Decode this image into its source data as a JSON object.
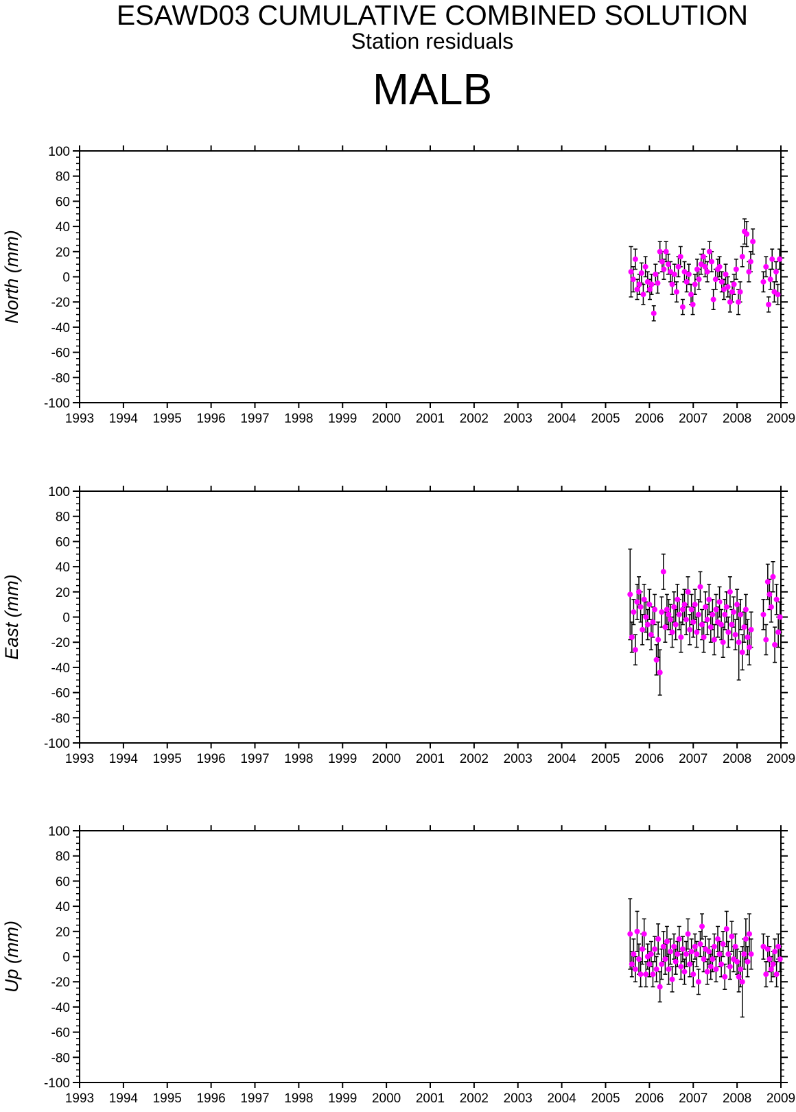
{
  "header": {
    "title": "ESAWD03 CUMULATIVE COMBINED SOLUTION",
    "subtitle": "Station residuals",
    "station": "MALB"
  },
  "colors": {
    "point": "#ff00ff",
    "errorbar": "#000000",
    "axis": "#000000",
    "background": "#ffffff"
  },
  "chart_data": [
    {
      "type": "scatter",
      "ylabel": "North (mm)",
      "xlim": [
        1993,
        2009
      ],
      "ylim": [
        -100,
        100
      ],
      "x_ticks": [
        "1993",
        "1994",
        "1995",
        "1996",
        "1997",
        "1998",
        "1999",
        "2000",
        "2001",
        "2002",
        "2003",
        "2004",
        "2005",
        "2006",
        "2007",
        "2008",
        "2009"
      ],
      "y_ticks": [
        "100",
        "80",
        "60",
        "40",
        "20",
        "0",
        "-20",
        "-40",
        "-60",
        "-80",
        "-100"
      ],
      "series": [
        {
          "x": [
            2005.58,
            2005.63,
            2005.68,
            2005.72,
            2005.77,
            2005.82,
            2005.86,
            2005.91,
            2005.96,
            2006.01,
            2006.05,
            2006.1,
            2006.14,
            2006.19,
            2006.24,
            2006.29,
            2006.33,
            2006.38,
            2006.43,
            2006.48,
            2006.52,
            2006.57,
            2006.62,
            2006.66,
            2006.71,
            2006.76,
            2006.8,
            2006.85,
            2006.9,
            2006.95,
            2006.99,
            2007.04,
            2007.09,
            2007.13,
            2007.18,
            2007.23,
            2007.27,
            2007.32,
            2007.37,
            2007.42,
            2007.46,
            2007.51,
            2007.56,
            2007.6,
            2007.65,
            2007.7,
            2007.74,
            2007.79,
            2007.84,
            2007.89,
            2007.93,
            2007.98,
            2008.03,
            2008.07,
            2008.12,
            2008.17,
            2008.22,
            2008.27,
            2008.31,
            2008.36,
            2008.6,
            2008.66,
            2008.72,
            2008.76,
            2008.8,
            2008.85,
            2008.89,
            2008.93,
            2008.97
          ],
          "y": [
            4,
            -2,
            14,
            -10,
            -6,
            3,
            -14,
            8,
            -4,
            -10,
            -6,
            -29,
            2,
            -5,
            20,
            12,
            6,
            20,
            10,
            4,
            -6,
            2,
            -12,
            8,
            16,
            -24,
            4,
            -4,
            2,
            -14,
            -22,
            -6,
            6,
            -2,
            10,
            16,
            8,
            4,
            20,
            12,
            -18,
            -2,
            6,
            8,
            -4,
            -10,
            2,
            -8,
            -20,
            -12,
            -6,
            6,
            -20,
            -12,
            16,
            36,
            34,
            4,
            12,
            28,
            -4,
            8,
            -22,
            -2,
            14,
            -12,
            4,
            -14,
            14
          ],
          "err": [
            20,
            10,
            8,
            8,
            8,
            8,
            8,
            8,
            8,
            8,
            8,
            6,
            8,
            8,
            8,
            8,
            8,
            8,
            8,
            8,
            8,
            8,
            8,
            8,
            8,
            6,
            8,
            8,
            8,
            8,
            8,
            8,
            8,
            8,
            8,
            6,
            8,
            8,
            8,
            8,
            8,
            8,
            8,
            8,
            8,
            8,
            8,
            8,
            8,
            8,
            8,
            8,
            10,
            8,
            8,
            10,
            10,
            8,
            8,
            10,
            8,
            8,
            6,
            8,
            8,
            8,
            8,
            8,
            8
          ]
        }
      ]
    },
    {
      "type": "scatter",
      "ylabel": "East (mm)",
      "xlim": [
        1993,
        2009
      ],
      "ylim": [
        -100,
        100
      ],
      "x_ticks": [
        "1993",
        "1994",
        "1995",
        "1996",
        "1997",
        "1998",
        "1999",
        "2000",
        "2001",
        "2002",
        "2003",
        "2004",
        "2005",
        "2006",
        "2007",
        "2008",
        "2009"
      ],
      "y_ticks": [
        "100",
        "80",
        "60",
        "40",
        "20",
        "0",
        "-20",
        "-40",
        "-60",
        "-80",
        "-100"
      ],
      "series": [
        {
          "x": [
            2005.56,
            2005.6,
            2005.64,
            2005.68,
            2005.72,
            2005.76,
            2005.8,
            2005.84,
            2005.88,
            2005.92,
            2005.96,
            2006.0,
            2006.04,
            2006.08,
            2006.12,
            2006.16,
            2006.2,
            2006.24,
            2006.28,
            2006.32,
            2006.36,
            2006.4,
            2006.44,
            2006.48,
            2006.52,
            2006.56,
            2006.6,
            2006.64,
            2006.68,
            2006.72,
            2006.76,
            2006.8,
            2006.84,
            2006.88,
            2006.92,
            2006.96,
            2007.0,
            2007.04,
            2007.08,
            2007.12,
            2007.16,
            2007.2,
            2007.24,
            2007.28,
            2007.32,
            2007.36,
            2007.4,
            2007.44,
            2007.48,
            2007.52,
            2007.56,
            2007.6,
            2007.64,
            2007.68,
            2007.72,
            2007.76,
            2007.8,
            2007.84,
            2007.88,
            2007.92,
            2007.96,
            2008.0,
            2008.04,
            2008.08,
            2008.12,
            2008.16,
            2008.2,
            2008.24,
            2008.28,
            2008.32,
            2008.6,
            2008.66,
            2008.7,
            2008.74,
            2008.78,
            2008.82,
            2008.86,
            2008.9,
            2008.94,
            2008.98
          ],
          "y": [
            18,
            -16,
            4,
            -26,
            12,
            20,
            8,
            -10,
            14,
            0,
            -6,
            10,
            -14,
            -4,
            6,
            -34,
            -18,
            -44,
            4,
            36,
            -8,
            6,
            2,
            -2,
            -12,
            8,
            -6,
            14,
            2,
            -16,
            6,
            10,
            -2,
            20,
            -10,
            6,
            -4,
            10,
            -12,
            2,
            24,
            -6,
            -16,
            8,
            -2,
            14,
            -8,
            2,
            -18,
            6,
            -4,
            12,
            -6,
            -20,
            2,
            8,
            -12,
            20,
            -6,
            4,
            -14,
            10,
            -20,
            2,
            -28,
            -8,
            6,
            -16,
            -24,
            -10,
            2,
            -18,
            28,
            18,
            8,
            32,
            -22,
            14,
            -12,
            0
          ],
          "err": [
            36,
            12,
            10,
            12,
            14,
            12,
            12,
            12,
            12,
            12,
            12,
            12,
            12,
            12,
            12,
            12,
            14,
            18,
            12,
            14,
            12,
            12,
            12,
            12,
            12,
            12,
            12,
            12,
            12,
            12,
            12,
            12,
            12,
            12,
            12,
            12,
            12,
            12,
            12,
            12,
            12,
            12,
            12,
            12,
            12,
            12,
            12,
            12,
            12,
            12,
            12,
            12,
            12,
            12,
            12,
            12,
            12,
            12,
            12,
            12,
            12,
            12,
            30,
            12,
            14,
            12,
            12,
            14,
            14,
            14,
            12,
            12,
            14,
            12,
            12,
            12,
            14,
            12,
            12,
            12
          ]
        }
      ]
    },
    {
      "type": "scatter",
      "ylabel": "Up (mm)",
      "xlim": [
        1993,
        2009
      ],
      "ylim": [
        -100,
        100
      ],
      "x_ticks": [
        "1993",
        "1994",
        "1995",
        "1996",
        "1997",
        "1998",
        "1999",
        "2000",
        "2001",
        "2002",
        "2003",
        "2004",
        "2005",
        "2006",
        "2007",
        "2008",
        "2009"
      ],
      "y_ticks": [
        "100",
        "80",
        "60",
        "40",
        "20",
        "0",
        "-20",
        "-40",
        "-60",
        "-80",
        "-100"
      ],
      "series": [
        {
          "x": [
            2005.56,
            2005.6,
            2005.64,
            2005.68,
            2005.72,
            2005.76,
            2005.8,
            2005.84,
            2005.88,
            2005.92,
            2005.96,
            2006.0,
            2006.04,
            2006.08,
            2006.12,
            2006.16,
            2006.2,
            2006.24,
            2006.28,
            2006.32,
            2006.36,
            2006.4,
            2006.44,
            2006.48,
            2006.52,
            2006.56,
            2006.6,
            2006.64,
            2006.68,
            2006.72,
            2006.76,
            2006.8,
            2006.84,
            2006.88,
            2006.92,
            2006.96,
            2007.0,
            2007.04,
            2007.08,
            2007.12,
            2007.16,
            2007.2,
            2007.24,
            2007.28,
            2007.32,
            2007.36,
            2007.4,
            2007.44,
            2007.48,
            2007.52,
            2007.56,
            2007.6,
            2007.64,
            2007.68,
            2007.72,
            2007.76,
            2007.8,
            2007.84,
            2007.88,
            2007.92,
            2007.96,
            2008.0,
            2008.04,
            2008.08,
            2008.12,
            2008.16,
            2008.2,
            2008.24,
            2008.28,
            2008.32,
            2008.6,
            2008.66,
            2008.7,
            2008.74,
            2008.78,
            2008.82,
            2008.86,
            2008.9,
            2008.94,
            2008.98
          ],
          "y": [
            18,
            -6,
            2,
            -10,
            20,
            -2,
            -14,
            6,
            18,
            -14,
            0,
            -6,
            2,
            -14,
            6,
            -10,
            14,
            -24,
            -6,
            8,
            -2,
            12,
            -10,
            4,
            -18,
            8,
            -4,
            2,
            14,
            -8,
            6,
            -12,
            2,
            18,
            -6,
            4,
            -14,
            8,
            2,
            -20,
            10,
            24,
            -2,
            6,
            -12,
            4,
            -8,
            -2,
            8,
            -10,
            14,
            2,
            -6,
            10,
            -16,
            22,
            2,
            -8,
            16,
            -2,
            8,
            -4,
            -16,
            -10,
            -20,
            2,
            14,
            -4,
            18,
            2,
            8,
            -14,
            6,
            -2,
            -10,
            -6,
            4,
            -14,
            8,
            -2
          ],
          "err": [
            28,
            10,
            12,
            10,
            16,
            12,
            10,
            12,
            12,
            10,
            10,
            10,
            10,
            10,
            10,
            10,
            12,
            12,
            12,
            12,
            12,
            12,
            12,
            10,
            10,
            10,
            10,
            10,
            10,
            10,
            10,
            10,
            10,
            12,
            10,
            10,
            10,
            10,
            10,
            10,
            10,
            10,
            10,
            10,
            10,
            10,
            10,
            10,
            10,
            10,
            10,
            10,
            10,
            10,
            10,
            14,
            10,
            10,
            12,
            10,
            10,
            10,
            12,
            14,
            28,
            12,
            16,
            12,
            16,
            12,
            10,
            10,
            10,
            10,
            10,
            10,
            10,
            10,
            10,
            10
          ]
        }
      ]
    }
  ]
}
